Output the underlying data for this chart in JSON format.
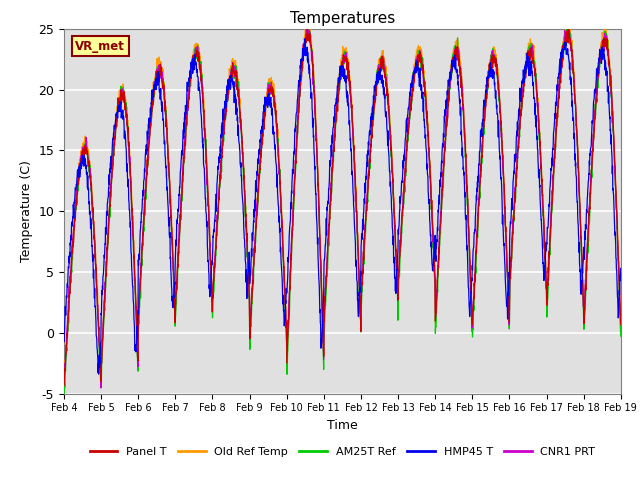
{
  "title": "Temperatures",
  "xlabel": "Time",
  "ylabel": "Temperature (C)",
  "ylim": [
    -5,
    25
  ],
  "xlim": [
    0,
    15
  ],
  "background_color": "#e0e0e0",
  "grid_color": "white",
  "legend_labels": [
    "Panel T",
    "Old Ref Temp",
    "AM25T Ref",
    "HMP45 T",
    "CNR1 PRT"
  ],
  "line_colors": [
    "#cc0000",
    "#ff9900",
    "#00cc00",
    "#0000ee",
    "#cc00cc"
  ],
  "site_label": "VR_met",
  "x_tick_labels": [
    "Feb 4",
    "Feb 5",
    "Feb 6",
    "Feb 7",
    "Feb 8",
    "Feb 9",
    "Feb 10",
    "Feb 11",
    "Feb 12",
    "Feb 13",
    "Feb 14",
    "Feb 15",
    "Feb 16",
    "Feb 17",
    "Feb 18",
    "Feb 19"
  ],
  "n_days": 15,
  "points_per_day": 144,
  "min_temps": [
    -4.5,
    -3.0,
    1.0,
    2.0,
    2.5,
    -0.5,
    -2.5,
    0.5,
    2.5,
    4.0,
    0.5,
    0.5,
    3.5,
    2.0,
    0.5
  ],
  "max_temps": [
    15.0,
    19.5,
    21.5,
    23.0,
    21.5,
    20.0,
    24.5,
    22.5,
    22.0,
    22.5,
    23.0,
    22.5,
    23.0,
    24.5,
    24.0
  ]
}
